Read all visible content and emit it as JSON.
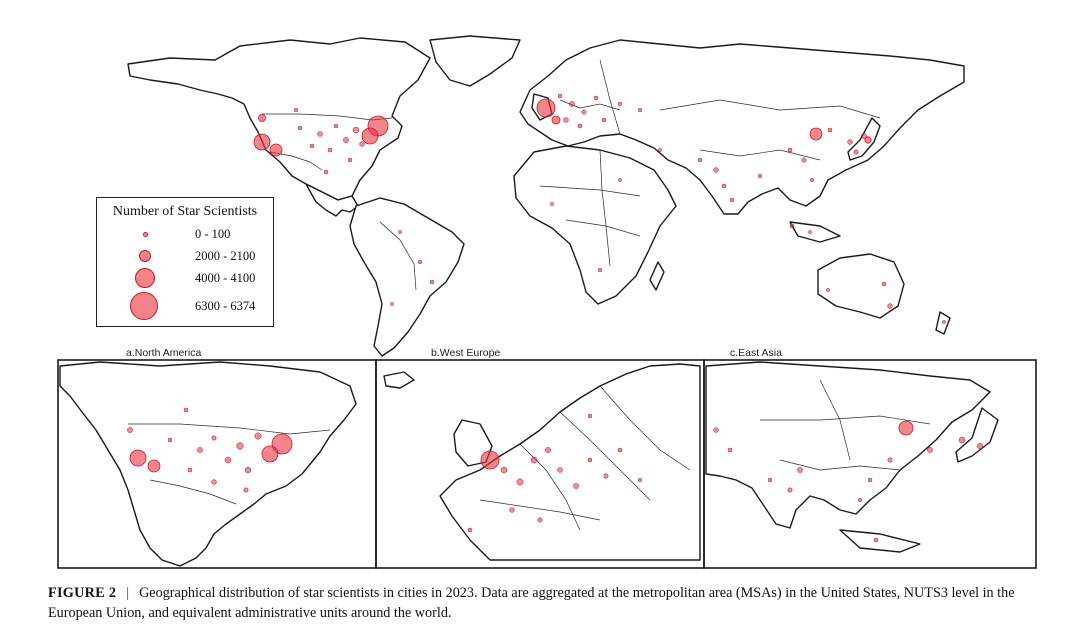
{
  "legend": {
    "title": "Number of Star Scientists",
    "items": [
      {
        "label": "0 - 100"
      },
      {
        "label": "2000 - 2100"
      },
      {
        "label": "4000 - 4100"
      },
      {
        "label": "6300 - 6374"
      }
    ]
  },
  "panels": [
    {
      "label": "a.North America"
    },
    {
      "label": "b.West Europe"
    },
    {
      "label": "c.East Asia"
    }
  ],
  "caption": {
    "label": "FIGURE 2",
    "separator": "|",
    "text": "Geographical distribution of star scientists in cities in 2023. Data are aggregated at the metropolitan area (MSAs) in the United States, NUTS3 level in the European Union, and equivalent administrative units around the world."
  },
  "colors": {
    "marker": "#ef3340",
    "land_stroke": "#1a1a1a"
  }
}
